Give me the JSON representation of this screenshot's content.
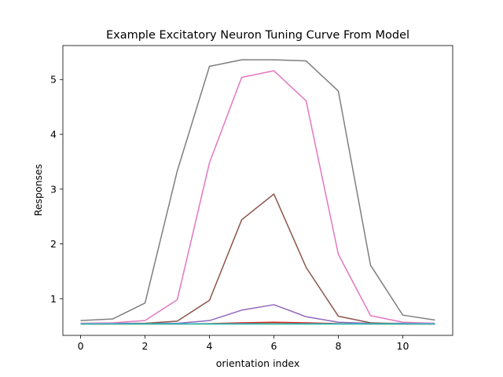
{
  "chart_data": {
    "type": "line",
    "title": "Example Excitatory Neuron Tuning Curve From Model",
    "xlabel": "orientation index",
    "ylabel": "Responses",
    "xlim": [
      -0.55,
      11.55
    ],
    "ylim": [
      0.33,
      5.62
    ],
    "x_ticks": [
      0,
      2,
      4,
      6,
      8,
      10
    ],
    "y_ticks": [
      1,
      2,
      3,
      4,
      5
    ],
    "grid": false,
    "x": [
      0,
      1,
      2,
      3,
      4,
      5,
      6,
      7,
      8,
      9,
      10,
      11
    ],
    "series": [
      {
        "color": "#1f77b4",
        "values": [
          0.54,
          0.54,
          0.54,
          0.54,
          0.54,
          0.54,
          0.54,
          0.54,
          0.54,
          0.54,
          0.54,
          0.54
        ]
      },
      {
        "color": "#ff7f0e",
        "values": [
          0.54,
          0.54,
          0.54,
          0.54,
          0.54,
          0.545,
          0.55,
          0.545,
          0.54,
          0.54,
          0.54,
          0.54
        ]
      },
      {
        "color": "#2ca02c",
        "values": [
          0.54,
          0.54,
          0.54,
          0.54,
          0.54,
          0.54,
          0.54,
          0.54,
          0.54,
          0.54,
          0.54,
          0.54
        ]
      },
      {
        "color": "#d62728",
        "values": [
          0.54,
          0.54,
          0.54,
          0.54,
          0.545,
          0.56,
          0.57,
          0.56,
          0.545,
          0.54,
          0.54,
          0.54
        ]
      },
      {
        "color": "#9467bd",
        "values": [
          0.55,
          0.55,
          0.55,
          0.55,
          0.6,
          0.79,
          0.89,
          0.67,
          0.57,
          0.55,
          0.55,
          0.55
        ]
      },
      {
        "color": "#8c564b",
        "values": [
          0.54,
          0.54,
          0.55,
          0.59,
          0.97,
          2.44,
          2.91,
          1.57,
          0.68,
          0.56,
          0.54,
          0.54
        ]
      },
      {
        "color": "#e377c2",
        "values": [
          0.55,
          0.56,
          0.6,
          0.98,
          3.48,
          5.04,
          5.16,
          4.61,
          1.81,
          0.69,
          0.57,
          0.55
        ]
      },
      {
        "color": "#7f7f7f",
        "values": [
          0.6,
          0.63,
          0.92,
          3.33,
          5.24,
          5.36,
          5.36,
          5.34,
          4.79,
          1.61,
          0.7,
          0.61
        ]
      },
      {
        "color": "#bcbd22",
        "values": [
          0.54,
          0.54,
          0.54,
          0.54,
          0.54,
          0.54,
          0.54,
          0.54,
          0.54,
          0.54,
          0.54,
          0.54
        ]
      },
      {
        "color": "#17becf",
        "values": [
          0.54,
          0.54,
          0.54,
          0.54,
          0.54,
          0.54,
          0.54,
          0.54,
          0.54,
          0.54,
          0.54,
          0.54
        ]
      }
    ]
  }
}
